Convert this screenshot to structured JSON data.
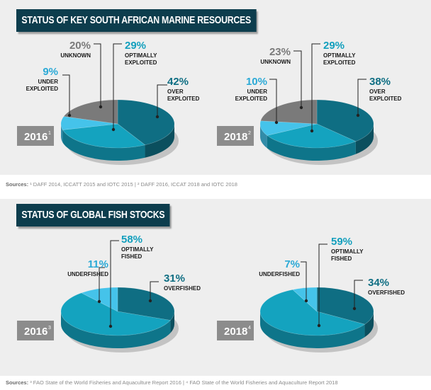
{
  "sections": [
    {
      "title": "STATUS OF KEY SOUTH AFRICAN MARINE RESOURCES",
      "sources_prefix": "Sources:",
      "sources_text": "¹ DAFF 2014, ICCATT 2015 and IOTC 2015  |  ² DAFF 2016, ICCAT 2018 and IOTC 2018"
    },
    {
      "title": "STATUS OF GLOBAL FISH STOCKS",
      "sources_prefix": "Sources:",
      "sources_text": "³ FAO State of the World Fisheries and Aquaculture Report 2016  |  ⁴ FAO State of the World Fisheries and Aquaculture Report 2018"
    }
  ],
  "chart_data": [
    {
      "type": "pie",
      "title": "STATUS OF KEY SOUTH AFRICAN MARINE RESOURCES",
      "year_label": "2016",
      "year_superscript": "1",
      "slices": [
        {
          "key": "over",
          "label": [
            "OVER",
            "EXPLOITED"
          ],
          "percent_label": "42%",
          "value": 42,
          "color": "#0f6e83"
        },
        {
          "key": "opt",
          "label": [
            "OPTIMALLY",
            "EXPLOITED"
          ],
          "percent_label": "29%",
          "value": 29,
          "color": "#14a3bf"
        },
        {
          "key": "under",
          "label": [
            "UNDER",
            "EXPLOITED"
          ],
          "percent_label": "9%",
          "value": 9,
          "color": "#45c3ea"
        },
        {
          "key": "unknown",
          "label": [
            "UNKNOWN"
          ],
          "percent_label": "20%",
          "value": 20,
          "color": "#7a7a7a"
        }
      ]
    },
    {
      "type": "pie",
      "title": "STATUS OF KEY SOUTH AFRICAN MARINE RESOURCES",
      "year_label": "2018",
      "year_superscript": "2",
      "slices": [
        {
          "key": "over",
          "label": [
            "OVER",
            "EXPLOITED"
          ],
          "percent_label": "38%",
          "value": 38,
          "color": "#0f6e83"
        },
        {
          "key": "opt",
          "label": [
            "OPTIMALLY",
            "EXPLOITED"
          ],
          "percent_label": "29%",
          "value": 29,
          "color": "#14a3bf"
        },
        {
          "key": "under",
          "label": [
            "UNDER",
            "EXPLOITED"
          ],
          "percent_label": "10%",
          "value": 10,
          "color": "#45c3ea"
        },
        {
          "key": "unknown",
          "label": [
            "UNKNOWN"
          ],
          "percent_label": "23%",
          "value": 23,
          "color": "#7a7a7a"
        }
      ]
    },
    {
      "type": "pie",
      "title": "STATUS OF GLOBAL FISH STOCKS",
      "year_label": "2016",
      "year_superscript": "3",
      "slices": [
        {
          "key": "over",
          "label": [
            "OVERFISHED"
          ],
          "percent_label": "31%",
          "value": 31,
          "color": "#0f6e83"
        },
        {
          "key": "opt",
          "label": [
            "OPTIMALLY",
            "FISHED"
          ],
          "percent_label": "58%",
          "value": 58,
          "color": "#14a3bf"
        },
        {
          "key": "under",
          "label": [
            "UNDERFISHED"
          ],
          "percent_label": "11%",
          "value": 11,
          "color": "#45c3ea"
        }
      ]
    },
    {
      "type": "pie",
      "title": "STATUS OF GLOBAL FISH STOCKS",
      "year_label": "2018",
      "year_superscript": "4",
      "slices": [
        {
          "key": "over",
          "label": [
            "OVERFISHED"
          ],
          "percent_label": "34%",
          "value": 34,
          "color": "#0f6e83"
        },
        {
          "key": "opt",
          "label": [
            "OPTIMALLY",
            "FISHED"
          ],
          "percent_label": "59%",
          "value": 59,
          "color": "#14a3bf"
        },
        {
          "key": "under",
          "label": [
            "UNDERFISHED"
          ],
          "percent_label": "7%",
          "value": 7,
          "color": "#45c3ea"
        }
      ]
    }
  ]
}
